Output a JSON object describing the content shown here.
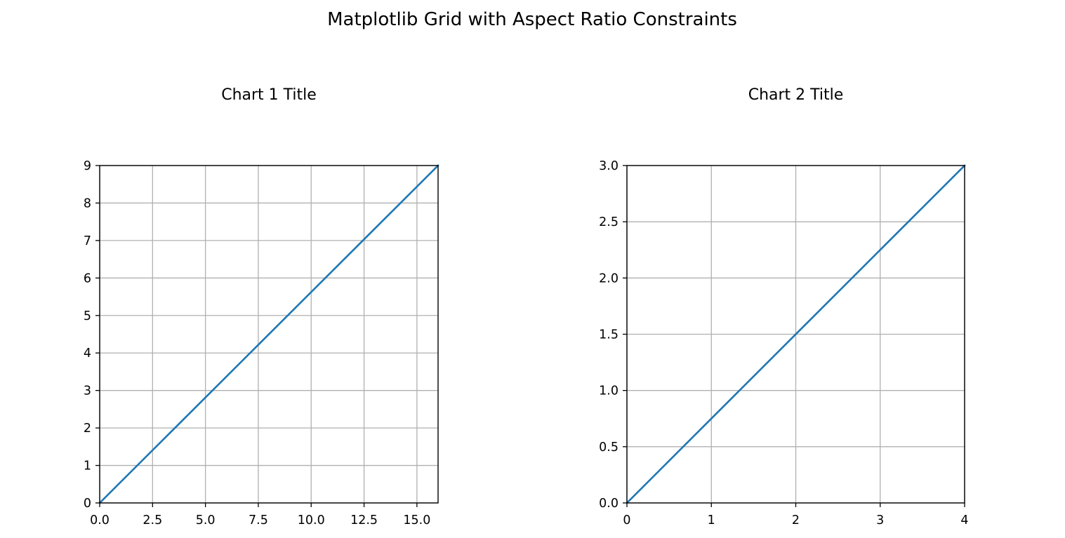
{
  "figure": {
    "suptitle": "Matplotlib Grid with Aspect Ratio Constraints"
  },
  "chart_data": [
    {
      "type": "line",
      "title": "Chart 1 Title",
      "xlabel": "",
      "ylabel": "",
      "xlim": [
        0,
        16
      ],
      "ylim": [
        0,
        9
      ],
      "xticks": [
        0.0,
        2.5,
        5.0,
        7.5,
        10.0,
        12.5,
        15.0
      ],
      "xtick_labels": [
        "0.0",
        "2.5",
        "5.0",
        "7.5",
        "10.0",
        "12.5",
        "15.0"
      ],
      "yticks": [
        0,
        1,
        2,
        3,
        4,
        5,
        6,
        7,
        8,
        9
      ],
      "ytick_labels": [
        "0",
        "1",
        "2",
        "3",
        "4",
        "5",
        "6",
        "7",
        "8",
        "9"
      ],
      "grid": true,
      "series": [
        {
          "color": "#1f77b4",
          "x": [
            0,
            16
          ],
          "y": [
            0,
            9
          ]
        }
      ]
    },
    {
      "type": "line",
      "title": "Chart 2 Title",
      "xlabel": "",
      "ylabel": "",
      "xlim": [
        0,
        4
      ],
      "ylim": [
        0,
        3
      ],
      "xticks": [
        0,
        1,
        2,
        3,
        4
      ],
      "xtick_labels": [
        "0",
        "1",
        "2",
        "3",
        "4"
      ],
      "yticks": [
        0.0,
        0.5,
        1.0,
        1.5,
        2.0,
        2.5,
        3.0
      ],
      "ytick_labels": [
        "0.0",
        "0.5",
        "1.0",
        "1.5",
        "2.0",
        "2.5",
        "3.0"
      ],
      "grid": true,
      "series": [
        {
          "color": "#1f77b4",
          "x": [
            0,
            4
          ],
          "y": [
            0,
            3
          ]
        }
      ]
    }
  ]
}
